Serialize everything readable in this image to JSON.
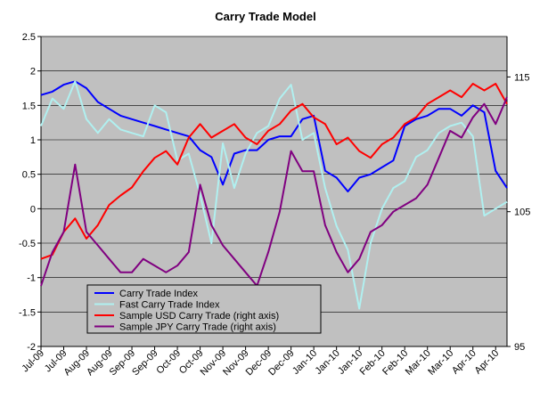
{
  "chart_data": {
    "type": "line",
    "title": "Carry Trade Model",
    "xlabel": "",
    "ylabel": "",
    "ylim": [
      -2,
      2.5
    ],
    "yticks": [
      "2.5",
      "2",
      "1.5",
      "1",
      "0.5",
      "0",
      "-0.5",
      "-1",
      "-1.5",
      "-2"
    ],
    "y2lim": [
      95,
      118
    ],
    "y2ticks": [
      "115",
      "105",
      "95"
    ],
    "grid": true,
    "legend_position": "bottom-left",
    "categories": [
      "Jul-09",
      "Jul-09",
      "Aug-09",
      "Aug-09",
      "Sep-09",
      "Sep-09",
      "Oct-09",
      "Oct-09",
      "Nov-09",
      "Nov-09",
      "Dec-09",
      "Dec-09",
      "Jan-10",
      "Jan-10",
      "Jan-10",
      "Feb-10",
      "Feb-10",
      "Mar-10",
      "Mar-10",
      "Apr-10",
      "Apr-10"
    ],
    "colors": {
      "carry_trade_index": "#0000ff",
      "fast_carry_trade_index": "#b0f0f0",
      "usd_carry": "#ff0000",
      "jpy_carry": "#800080",
      "plot_bg": "#c0c0c0"
    },
    "series": [
      {
        "name": "Carry Trade Index",
        "axis": "left",
        "x": [
          0,
          0.5,
          1,
          1.5,
          2,
          2.5,
          3,
          3.5,
          4,
          4.5,
          5,
          5.5,
          6,
          6.5,
          7,
          7.5,
          8,
          8.5,
          9,
          9.5,
          10,
          10.5,
          11,
          11.5,
          12,
          12.5,
          13,
          13.5,
          14,
          14.5,
          15,
          15.5,
          16,
          16.5,
          17,
          17.5,
          18,
          18.5,
          19,
          19.5,
          20,
          20.5
        ],
        "values": [
          1.65,
          1.7,
          1.8,
          1.85,
          1.75,
          1.55,
          1.45,
          1.35,
          1.3,
          1.25,
          1.2,
          1.15,
          1.1,
          1.05,
          0.85,
          0.75,
          0.35,
          0.8,
          0.85,
          0.85,
          1.0,
          1.05,
          1.05,
          1.3,
          1.35,
          0.55,
          0.45,
          0.25,
          0.45,
          0.5,
          0.6,
          0.7,
          1.2,
          1.3,
          1.35,
          1.45,
          1.45,
          1.35,
          1.5,
          1.4,
          0.55,
          0.3
        ]
      },
      {
        "name": "Fast Carry Trade Index",
        "axis": "left",
        "x": [
          0,
          0.5,
          1,
          1.5,
          2,
          2.5,
          3,
          3.5,
          4,
          4.5,
          5,
          5.5,
          6,
          6.5,
          7,
          7.5,
          8,
          8.5,
          9,
          9.5,
          10,
          10.5,
          11,
          11.5,
          12,
          12.5,
          13,
          13.5,
          14,
          14.5,
          15,
          15.5,
          16,
          16.5,
          17,
          17.5,
          18,
          18.5,
          19,
          19.5,
          20,
          20.5
        ],
        "values": [
          1.2,
          1.6,
          1.45,
          1.85,
          1.3,
          1.1,
          1.3,
          1.15,
          1.1,
          1.05,
          1.5,
          1.4,
          0.7,
          0.8,
          0.2,
          -0.5,
          0.95,
          0.3,
          0.8,
          1.1,
          1.2,
          1.6,
          1.8,
          1.0,
          1.1,
          0.3,
          -0.25,
          -0.6,
          -1.45,
          -0.5,
          0.0,
          0.3,
          0.4,
          0.75,
          0.85,
          1.1,
          1.2,
          1.25,
          1.05,
          -0.1,
          0.0,
          0.1
        ]
      },
      {
        "name": "Sample USD Carry Trade (right axis)",
        "axis": "right",
        "x": [
          0,
          0.5,
          1,
          1.5,
          2,
          2.5,
          3,
          3.5,
          4,
          4.5,
          5,
          5.5,
          6,
          6.5,
          7,
          7.5,
          8,
          8.5,
          9,
          9.5,
          10,
          10.5,
          11,
          11.5,
          12,
          12.5,
          13,
          13.5,
          14,
          14.5,
          15,
          15.5,
          16,
          16.5,
          17,
          17.5,
          18,
          18.5,
          19,
          19.5,
          20,
          20.5
        ],
        "values": [
          101.5,
          101.8,
          103.5,
          104.5,
          103.0,
          104.0,
          105.5,
          106.2,
          106.8,
          108.0,
          109.0,
          109.5,
          108.5,
          110.5,
          111.5,
          110.5,
          111.0,
          111.5,
          110.5,
          110.0,
          111.0,
          111.5,
          112.5,
          113.0,
          112.0,
          111.5,
          110.0,
          110.5,
          109.5,
          109.0,
          110.0,
          110.5,
          111.5,
          112.0,
          113.0,
          113.5,
          114.0,
          113.5,
          114.5,
          114.0,
          114.5,
          113.0
        ]
      },
      {
        "name": "Sample JPY Carry Trade (right axis)",
        "axis": "right",
        "x": [
          0,
          0.5,
          1,
          1.5,
          2,
          2.5,
          3,
          3.5,
          4,
          4.5,
          5,
          5.5,
          6,
          6.5,
          7,
          7.5,
          8,
          8.5,
          9,
          9.5,
          10,
          10.5,
          11,
          11.5,
          12,
          12.5,
          13,
          13.5,
          14,
          14.5,
          15,
          15.5,
          16,
          16.5,
          17,
          17.5,
          18,
          18.5,
          19,
          19.5,
          20,
          20.5
        ],
        "values": [
          99.5,
          102.0,
          103.5,
          108.5,
          103.5,
          102.5,
          101.5,
          100.5,
          100.5,
          101.5,
          101.0,
          100.5,
          101.0,
          102.0,
          107.0,
          104.0,
          102.5,
          101.5,
          100.5,
          99.5,
          102.0,
          105.0,
          109.5,
          108.0,
          108.0,
          104.0,
          102.0,
          100.5,
          101.5,
          103.5,
          104.0,
          105.0,
          105.5,
          106.0,
          107.0,
          109.0,
          111.0,
          110.5,
          112.0,
          113.0,
          111.5,
          113.5
        ]
      }
    ]
  }
}
